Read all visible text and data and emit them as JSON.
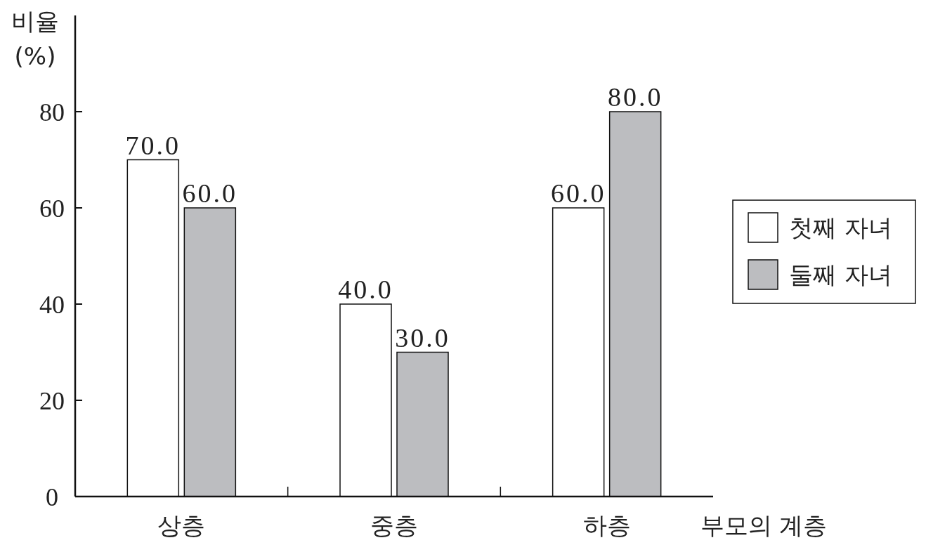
{
  "chart_data": {
    "type": "bar",
    "xlabel": "부모의 계층",
    "ylabel": "비율 (%)",
    "categories": [
      "상층",
      "중층",
      "하층"
    ],
    "series": [
      {
        "name": "첫째 자녀",
        "color": "#ffffff",
        "values": [
          70,
          40,
          60
        ],
        "value_labels": [
          "70.0",
          "40.0",
          "60.0"
        ]
      },
      {
        "name": "둘째 자녀",
        "color": "#bcbdc0",
        "values": [
          60,
          30,
          80
        ],
        "value_labels": [
          "60.0",
          "30.0",
          "80.0"
        ]
      }
    ],
    "ylim": [
      0,
      100
    ],
    "yticks": [
      0,
      20,
      40,
      60,
      80
    ],
    "grid": false,
    "legend": "right"
  }
}
